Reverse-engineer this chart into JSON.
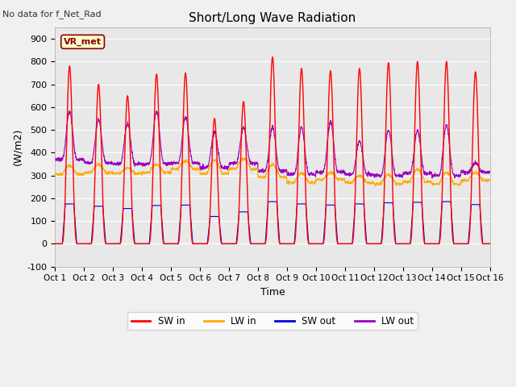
{
  "title": "Short/Long Wave Radiation",
  "xlabel": "Time",
  "ylabel": "(W/m2)",
  "ylim": [
    -100,
    950
  ],
  "xlim": [
    0,
    15
  ],
  "plot_bg_color": "#e8e8e8",
  "fig_bg_color": "#f0f0f0",
  "annotation_text": "No data for f_Net_Rad",
  "station_label": "VR_met",
  "xtick_labels": [
    "Oct 1",
    "Oct 2",
    "Oct 3",
    "Oct 4",
    "Oct 5",
    "Oct 6",
    "Oct 7",
    "Oct 8",
    "Oct 9",
    "Oct 10",
    "Oct 11",
    "Oct 12",
    "Oct 13",
    "Oct 14",
    "Oct 15",
    "Oct 16"
  ],
  "ytick_values": [
    -100,
    0,
    100,
    200,
    300,
    400,
    500,
    600,
    700,
    800,
    900
  ],
  "legend_entries": [
    "SW in",
    "LW in",
    "SW out",
    "LW out"
  ],
  "legend_colors": [
    "#ff0000",
    "#ffaa00",
    "#0000dd",
    "#9900bb"
  ],
  "num_days": 15,
  "pts_per_day": 144,
  "sw_in_peaks": [
    780,
    700,
    650,
    745,
    750,
    550,
    625,
    820,
    770,
    760,
    770,
    795,
    800,
    800,
    755
  ],
  "sw_out_peaks": [
    175,
    165,
    155,
    168,
    170,
    120,
    140,
    185,
    175,
    170,
    175,
    180,
    182,
    185,
    172
  ],
  "lw_in_base": [
    305,
    312,
    308,
    313,
    328,
    308,
    328,
    292,
    268,
    282,
    268,
    262,
    272,
    262,
    278
  ],
  "lw_in_peak_add": [
    38,
    35,
    25,
    35,
    35,
    60,
    45,
    55,
    40,
    30,
    30,
    40,
    55,
    50,
    35
  ],
  "lw_out_base": [
    370,
    355,
    350,
    350,
    355,
    335,
    355,
    320,
    305,
    315,
    305,
    300,
    310,
    300,
    315
  ],
  "lw_out_peak": [
    580,
    545,
    525,
    580,
    555,
    490,
    510,
    510,
    510,
    535,
    450,
    500,
    495,
    520,
    355
  ]
}
